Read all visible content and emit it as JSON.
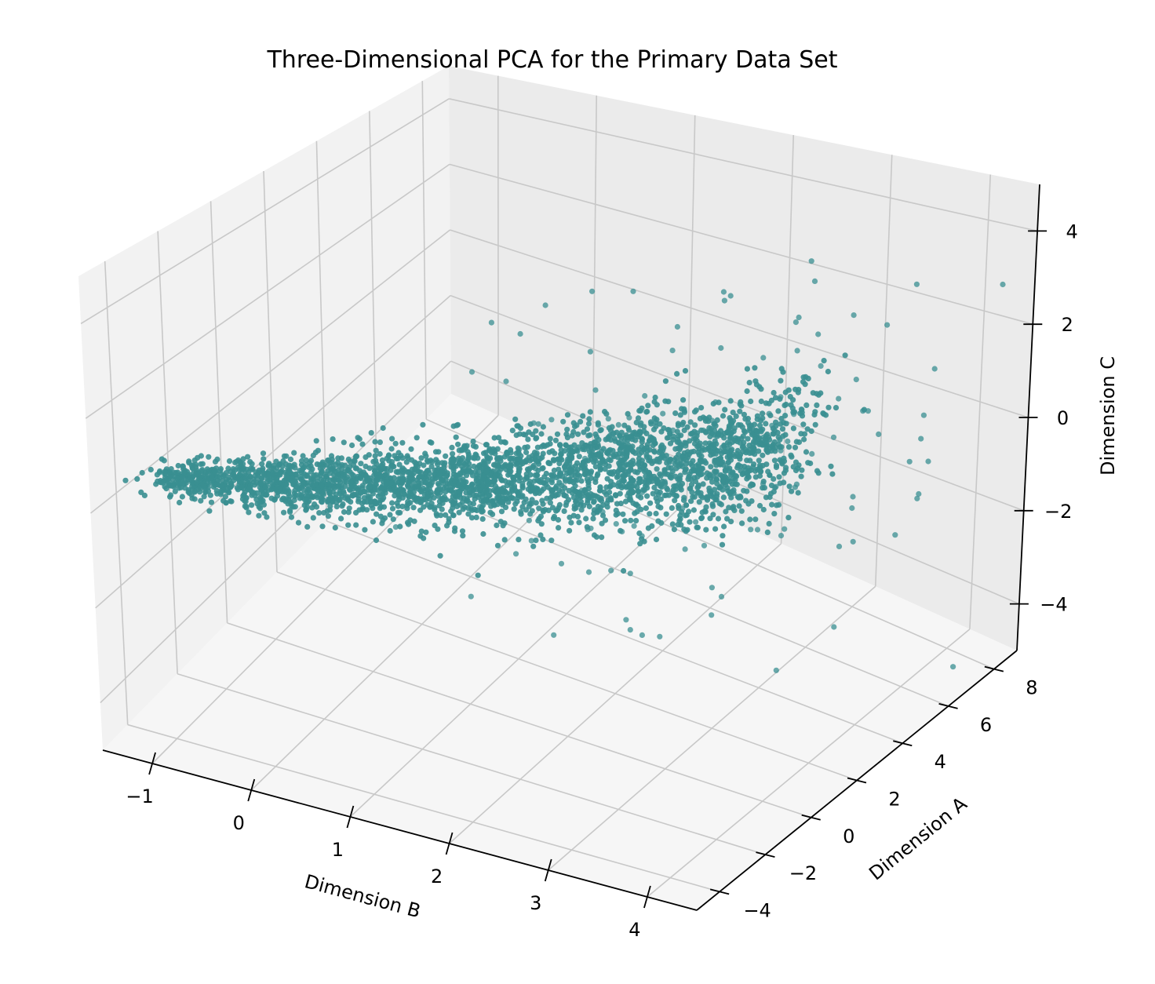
{
  "chart_data": {
    "type": "scatter",
    "projection": "3d",
    "title": "Three-Dimensional PCA for the Primary Data Set",
    "xlabel": "Dimension B",
    "ylabel": "Dimension A",
    "zlabel": "Dimension C",
    "x_ticks": [
      -1,
      0,
      1,
      2,
      3,
      4
    ],
    "y_ticks": [
      -4,
      -2,
      0,
      2,
      4,
      6,
      8
    ],
    "z_ticks": [
      -4,
      -2,
      0,
      2,
      4
    ],
    "xlim": [
      -1.5,
      4.5
    ],
    "ylim": [
      -5,
      9
    ],
    "zlim": [
      -5,
      5
    ],
    "grid": true,
    "legend": "none",
    "marker_color": "#3a8f91",
    "pane_color": "#f2f2f2",
    "n_points_estimated": 6000,
    "cluster_description_points": [
      {
        "x": -1.0,
        "y": -3.5,
        "z": 0.5
      },
      {
        "x": 0.5,
        "y": -1.5,
        "z": -0.3
      },
      {
        "x": 1.5,
        "y": 0.5,
        "z": -0.6
      },
      {
        "x": 2.5,
        "y": 2.0,
        "z": -0.3
      },
      {
        "x": 3.2,
        "y": 3.5,
        "z": 0.3
      }
    ]
  }
}
